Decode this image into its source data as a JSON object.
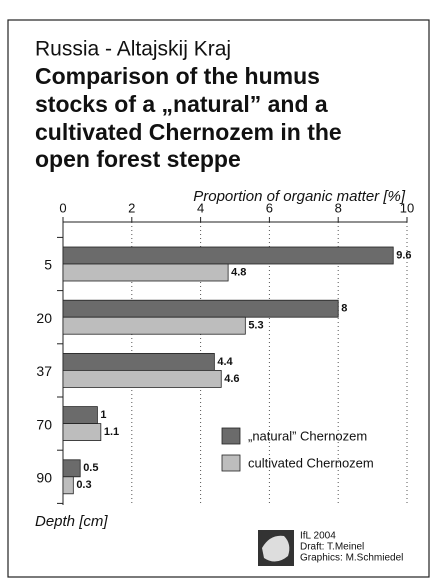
{
  "chart_data": {
    "type": "bar",
    "orientation": "horizontal",
    "subtitle": "Russia - Altajskij Kraj",
    "title": [
      "Comparison of the humus",
      "stocks of a „natural” and a",
      "cultivated Chernozem in the",
      "open forest steppe"
    ],
    "x_label": "Proportion of organic matter [%]",
    "y_label": "Depth [cm]",
    "categories": [
      "5",
      "20",
      "37",
      "70",
      "90"
    ],
    "series": [
      {
        "name": "„natural” Chernozem",
        "color": "#6b6b6b",
        "values": [
          9.6,
          8,
          4.4,
          1,
          0.5
        ]
      },
      {
        "name": "cultivated Chernozem",
        "color": "#bdbdbd",
        "values": [
          4.8,
          5.3,
          4.6,
          1.1,
          0.3
        ]
      }
    ],
    "xlim": [
      0,
      10
    ],
    "xticks": [
      0,
      2,
      4,
      6,
      8,
      10
    ],
    "grid": true,
    "credits": [
      "IfL 2004",
      "Draft: T.Meinel",
      "Graphics: M.Schmiedel"
    ]
  }
}
